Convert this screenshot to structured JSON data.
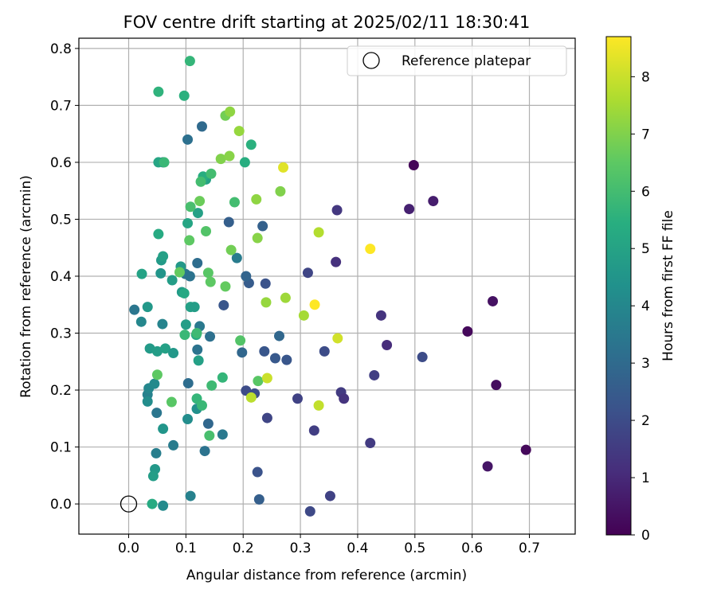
{
  "chart_data": {
    "type": "scatter",
    "title": "FOV centre drift starting at 2025/02/11 18:30:41",
    "xlabel": "Angular distance from reference (arcmin)",
    "ylabel": "Rotation from reference (arcmin)",
    "xlim": [
      -0.087,
      0.78
    ],
    "ylim": [
      -0.053,
      0.818
    ],
    "xticks": [
      "0.0",
      "0.1",
      "0.2",
      "0.3",
      "0.4",
      "0.5",
      "0.6",
      "0.7"
    ],
    "xtick_values": [
      0,
      0.1,
      0.2,
      0.3,
      0.4,
      0.5,
      0.6,
      0.7
    ],
    "yticks": [
      "0.0",
      "0.1",
      "0.2",
      "0.3",
      "0.4",
      "0.5",
      "0.6",
      "0.7",
      "0.8"
    ],
    "ytick_values": [
      0,
      0.1,
      0.2,
      0.3,
      0.4,
      0.5,
      0.6,
      0.7,
      0.8
    ],
    "grid": true,
    "legend": {
      "position": "top-right",
      "entries": [
        {
          "label": "Reference platepar",
          "marker": "open-circle",
          "x": 0,
          "y": 0
        }
      ]
    },
    "colorbar": {
      "label": "Hours from first FF file",
      "colormap": "viridis",
      "range": [
        0,
        8.7
      ],
      "ticks": [
        "0",
        "1",
        "2",
        "3",
        "4",
        "5",
        "6",
        "7",
        "8"
      ],
      "tick_values": [
        0,
        1,
        2,
        3,
        4,
        5,
        6,
        7,
        8
      ]
    },
    "points": [
      {
        "x": 0.498,
        "y": 0.595,
        "c": 0.1
      },
      {
        "x": 0.532,
        "y": 0.532,
        "c": 0.7
      },
      {
        "x": 0.49,
        "y": 0.518,
        "c": 0.8
      },
      {
        "x": 0.592,
        "y": 0.303,
        "c": 0.2
      },
      {
        "x": 0.636,
        "y": 0.356,
        "c": 0.4
      },
      {
        "x": 0.642,
        "y": 0.209,
        "c": 0.3
      },
      {
        "x": 0.627,
        "y": 0.066,
        "c": 0.5
      },
      {
        "x": 0.694,
        "y": 0.095,
        "c": 0.2
      },
      {
        "x": 0.364,
        "y": 0.516,
        "c": 1.4
      },
      {
        "x": 0.362,
        "y": 0.425,
        "c": 1.2
      },
      {
        "x": 0.441,
        "y": 0.331,
        "c": 1.3
      },
      {
        "x": 0.451,
        "y": 0.279,
        "c": 1.1
      },
      {
        "x": 0.513,
        "y": 0.258,
        "c": 2.0
      },
      {
        "x": 0.429,
        "y": 0.226,
        "c": 1.6
      },
      {
        "x": 0.371,
        "y": 0.196,
        "c": 1.5
      },
      {
        "x": 0.376,
        "y": 0.185,
        "c": 1.3
      },
      {
        "x": 0.422,
        "y": 0.107,
        "c": 1.5
      },
      {
        "x": 0.352,
        "y": 0.014,
        "c": 1.7
      },
      {
        "x": 0.313,
        "y": 0.406,
        "c": 1.8
      },
      {
        "x": 0.342,
        "y": 0.268,
        "c": 2.0
      },
      {
        "x": 0.295,
        "y": 0.185,
        "c": 1.7
      },
      {
        "x": 0.324,
        "y": 0.129,
        "c": 1.6
      },
      {
        "x": 0.317,
        "y": -0.013,
        "c": 1.9
      },
      {
        "x": 0.239,
        "y": 0.387,
        "c": 2.2
      },
      {
        "x": 0.237,
        "y": 0.268,
        "c": 2.3
      },
      {
        "x": 0.256,
        "y": 0.256,
        "c": 2.4
      },
      {
        "x": 0.276,
        "y": 0.253,
        "c": 2.3
      },
      {
        "x": 0.263,
        "y": 0.295,
        "c": 2.9
      },
      {
        "x": 0.242,
        "y": 0.151,
        "c": 1.8
      },
      {
        "x": 0.22,
        "y": 0.194,
        "c": 2.1
      },
      {
        "x": 0.205,
        "y": 0.199,
        "c": 2.0
      },
      {
        "x": 0.225,
        "y": 0.056,
        "c": 2.2
      },
      {
        "x": 0.228,
        "y": 0.008,
        "c": 2.6
      },
      {
        "x": 0.234,
        "y": 0.488,
        "c": 2.7
      },
      {
        "x": 0.175,
        "y": 0.495,
        "c": 2.6
      },
      {
        "x": 0.21,
        "y": 0.388,
        "c": 2.5
      },
      {
        "x": 0.205,
        "y": 0.4,
        "c": 2.8
      },
      {
        "x": 0.166,
        "y": 0.349,
        "c": 2.3
      },
      {
        "x": 0.198,
        "y": 0.266,
        "c": 2.9
      },
      {
        "x": 0.128,
        "y": 0.663,
        "c": 3.0
      },
      {
        "x": 0.103,
        "y": 0.64,
        "c": 3.2
      },
      {
        "x": 0.06,
        "y": 0.6,
        "c": 3.0
      },
      {
        "x": 0.189,
        "y": 0.432,
        "c": 3.6
      },
      {
        "x": 0.12,
        "y": 0.423,
        "c": 3.1
      },
      {
        "x": 0.099,
        "y": 0.404,
        "c": 3.4
      },
      {
        "x": 0.107,
        "y": 0.4,
        "c": 3.3
      },
      {
        "x": 0.142,
        "y": 0.294,
        "c": 3.2
      },
      {
        "x": 0.12,
        "y": 0.271,
        "c": 3.3
      },
      {
        "x": 0.124,
        "y": 0.312,
        "c": 3.5
      },
      {
        "x": 0.059,
        "y": 0.316,
        "c": 3.9
      },
      {
        "x": 0.022,
        "y": 0.32,
        "c": 4.0
      },
      {
        "x": 0.01,
        "y": 0.341,
        "c": 3.4
      },
      {
        "x": 0.104,
        "y": 0.212,
        "c": 3.1
      },
      {
        "x": 0.049,
        "y": 0.16,
        "c": 3.4
      },
      {
        "x": 0.139,
        "y": 0.141,
        "c": 2.9
      },
      {
        "x": 0.164,
        "y": 0.122,
        "c": 3.5
      },
      {
        "x": 0.133,
        "y": 0.093,
        "c": 3.3
      },
      {
        "x": 0.078,
        "y": 0.103,
        "c": 3.6
      },
      {
        "x": 0.048,
        "y": 0.089,
        "c": 3.7
      },
      {
        "x": 0.108,
        "y": 0.014,
        "c": 3.8
      },
      {
        "x": 0.06,
        "y": -0.003,
        "c": 4.1
      },
      {
        "x": 0.103,
        "y": 0.149,
        "c": 4.2
      },
      {
        "x": 0.119,
        "y": 0.167,
        "c": 4.3
      },
      {
        "x": 0.033,
        "y": 0.192,
        "c": 3.8
      },
      {
        "x": 0.035,
        "y": 0.203,
        "c": 4.0
      },
      {
        "x": 0.045,
        "y": 0.211,
        "c": 4.1
      },
      {
        "x": 0.033,
        "y": 0.18,
        "c": 4.2
      },
      {
        "x": 0.06,
        "y": 0.132,
        "c": 4.5
      },
      {
        "x": 0.046,
        "y": 0.061,
        "c": 4.6
      },
      {
        "x": 0.043,
        "y": 0.049,
        "c": 4.8
      },
      {
        "x": 0.121,
        "y": 0.511,
        "c": 4.9
      },
      {
        "x": 0.103,
        "y": 0.493,
        "c": 5.1
      },
      {
        "x": 0.057,
        "y": 0.428,
        "c": 4.7
      },
      {
        "x": 0.06,
        "y": 0.435,
        "c": 4.9
      },
      {
        "x": 0.056,
        "y": 0.405,
        "c": 4.5
      },
      {
        "x": 0.091,
        "y": 0.417,
        "c": 4.6
      },
      {
        "x": 0.076,
        "y": 0.393,
        "c": 4.8
      },
      {
        "x": 0.093,
        "y": 0.372,
        "c": 4.7
      },
      {
        "x": 0.097,
        "y": 0.37,
        "c": 5.2
      },
      {
        "x": 0.108,
        "y": 0.346,
        "c": 4.9
      },
      {
        "x": 0.115,
        "y": 0.346,
        "c": 4.8
      },
      {
        "x": 0.033,
        "y": 0.346,
        "c": 4.6
      },
      {
        "x": 0.023,
        "y": 0.404,
        "c": 5.0
      },
      {
        "x": 0.037,
        "y": 0.273,
        "c": 4.7
      },
      {
        "x": 0.05,
        "y": 0.268,
        "c": 4.8
      },
      {
        "x": 0.064,
        "y": 0.273,
        "c": 4.9
      },
      {
        "x": 0.078,
        "y": 0.265,
        "c": 4.6
      },
      {
        "x": 0.1,
        "y": 0.315,
        "c": 4.8
      },
      {
        "x": 0.118,
        "y": 0.297,
        "c": 5.3
      },
      {
        "x": 0.122,
        "y": 0.252,
        "c": 4.9
      },
      {
        "x": 0.052,
        "y": 0.6,
        "c": 5.1
      },
      {
        "x": 0.041,
        "y": 0.0,
        "c": 5.3
      },
      {
        "x": 0.052,
        "y": 0.474,
        "c": 5.3
      },
      {
        "x": 0.135,
        "y": 0.57,
        "c": 5.0
      },
      {
        "x": 0.13,
        "y": 0.575,
        "c": 5.4
      },
      {
        "x": 0.052,
        "y": 0.724,
        "c": 5.6
      },
      {
        "x": 0.097,
        "y": 0.717,
        "c": 5.5
      },
      {
        "x": 0.107,
        "y": 0.778,
        "c": 5.7
      },
      {
        "x": 0.214,
        "y": 0.631,
        "c": 5.5
      },
      {
        "x": 0.203,
        "y": 0.6,
        "c": 5.4
      },
      {
        "x": 0.062,
        "y": 0.6,
        "c": 5.8
      },
      {
        "x": 0.126,
        "y": 0.566,
        "c": 6.0
      },
      {
        "x": 0.144,
        "y": 0.58,
        "c": 6.0
      },
      {
        "x": 0.108,
        "y": 0.522,
        "c": 6.1
      },
      {
        "x": 0.135,
        "y": 0.479,
        "c": 6.3
      },
      {
        "x": 0.185,
        "y": 0.53,
        "c": 6.0
      },
      {
        "x": 0.098,
        "y": 0.297,
        "c": 5.8
      },
      {
        "x": 0.119,
        "y": 0.3,
        "c": 5.9
      },
      {
        "x": 0.119,
        "y": 0.185,
        "c": 5.7
      },
      {
        "x": 0.128,
        "y": 0.173,
        "c": 5.8
      },
      {
        "x": 0.145,
        "y": 0.208,
        "c": 5.9
      },
      {
        "x": 0.164,
        "y": 0.222,
        "c": 5.7
      },
      {
        "x": 0.141,
        "y": 0.12,
        "c": 6.1
      },
      {
        "x": 0.075,
        "y": 0.179,
        "c": 6.4
      },
      {
        "x": 0.05,
        "y": 0.227,
        "c": 6.5
      },
      {
        "x": 0.089,
        "y": 0.407,
        "c": 6.6
      },
      {
        "x": 0.139,
        "y": 0.406,
        "c": 6.4
      },
      {
        "x": 0.143,
        "y": 0.39,
        "c": 6.5
      },
      {
        "x": 0.169,
        "y": 0.382,
        "c": 6.6
      },
      {
        "x": 0.179,
        "y": 0.446,
        "c": 6.8
      },
      {
        "x": 0.106,
        "y": 0.463,
        "c": 6.5
      },
      {
        "x": 0.124,
        "y": 0.532,
        "c": 6.7
      },
      {
        "x": 0.195,
        "y": 0.287,
        "c": 6.3
      },
      {
        "x": 0.226,
        "y": 0.216,
        "c": 6.4
      },
      {
        "x": 0.169,
        "y": 0.682,
        "c": 6.8
      },
      {
        "x": 0.177,
        "y": 0.689,
        "c": 7.2
      },
      {
        "x": 0.193,
        "y": 0.655,
        "c": 7.3
      },
      {
        "x": 0.161,
        "y": 0.606,
        "c": 7.0
      },
      {
        "x": 0.176,
        "y": 0.611,
        "c": 7.1
      },
      {
        "x": 0.223,
        "y": 0.535,
        "c": 7.2
      },
      {
        "x": 0.265,
        "y": 0.549,
        "c": 7.0
      },
      {
        "x": 0.225,
        "y": 0.467,
        "c": 7.1
      },
      {
        "x": 0.24,
        "y": 0.354,
        "c": 7.3
      },
      {
        "x": 0.274,
        "y": 0.362,
        "c": 7.4
      },
      {
        "x": 0.306,
        "y": 0.331,
        "c": 7.5
      },
      {
        "x": 0.242,
        "y": 0.221,
        "c": 8.0
      },
      {
        "x": 0.214,
        "y": 0.187,
        "c": 7.8
      },
      {
        "x": 0.332,
        "y": 0.173,
        "c": 7.9
      },
      {
        "x": 0.365,
        "y": 0.291,
        "c": 8.1
      },
      {
        "x": 0.332,
        "y": 0.477,
        "c": 7.7
      },
      {
        "x": 0.27,
        "y": 0.591,
        "c": 8.3
      },
      {
        "x": 0.325,
        "y": 0.35,
        "c": 8.7
      },
      {
        "x": 0.422,
        "y": 0.448,
        "c": 8.7
      }
    ]
  }
}
